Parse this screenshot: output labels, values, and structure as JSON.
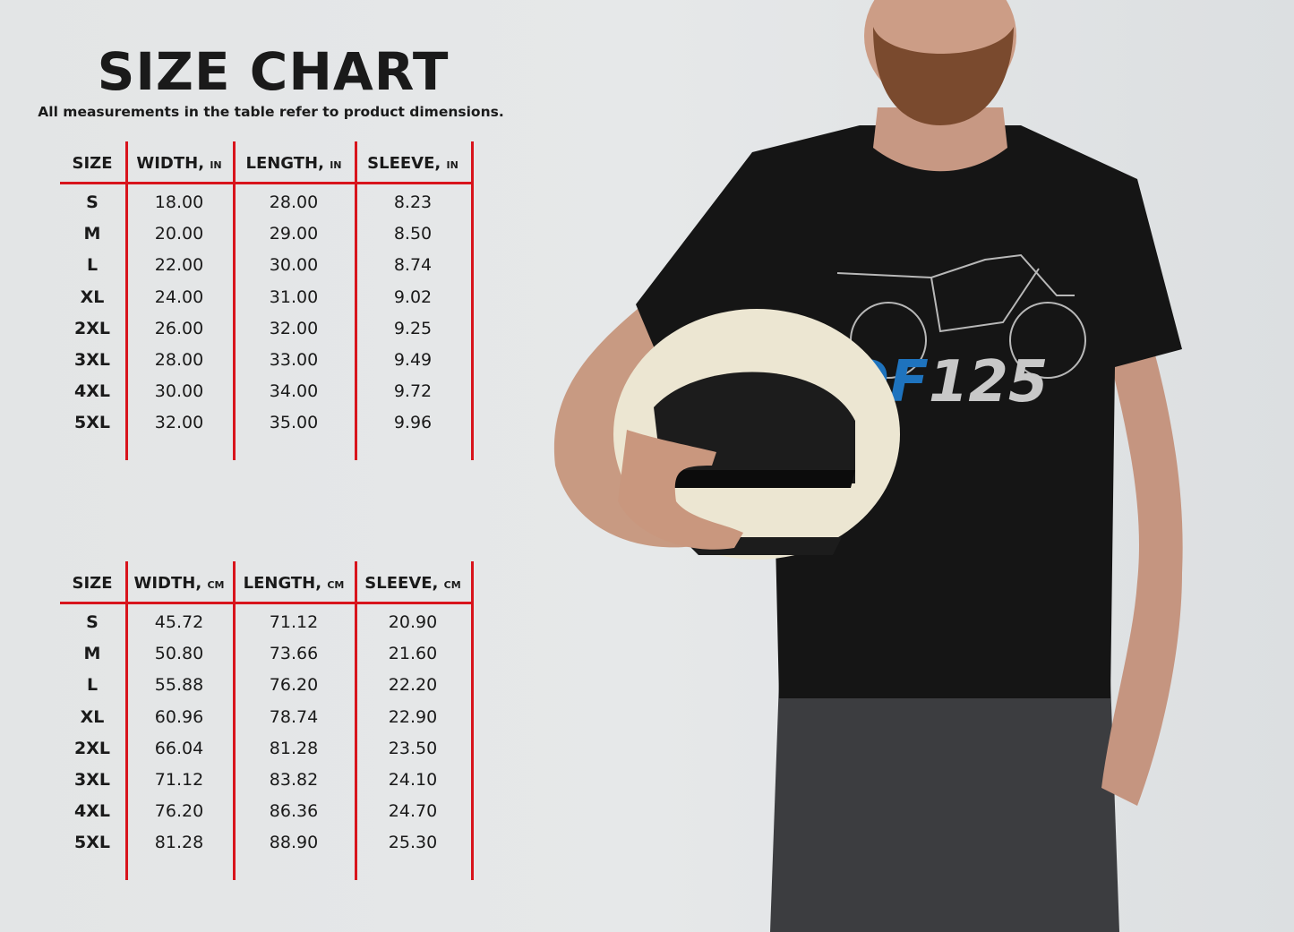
{
  "title": "SIZE CHART",
  "subtitle": "All measurements in the table refer to product dimensions.",
  "tables": [
    {
      "headers": [
        {
          "label": "SIZE",
          "unit": ""
        },
        {
          "label": "WIDTH,",
          "unit": "IN"
        },
        {
          "label": "LENGTH,",
          "unit": "IN"
        },
        {
          "label": "SLEEVE,",
          "unit": "IN"
        }
      ],
      "rows": [
        [
          "S",
          "18.00",
          "28.00",
          "8.23"
        ],
        [
          "M",
          "20.00",
          "29.00",
          "8.50"
        ],
        [
          "L",
          "22.00",
          "30.00",
          "8.74"
        ],
        [
          "XL",
          "24.00",
          "31.00",
          "9.02"
        ],
        [
          "2XL",
          "26.00",
          "32.00",
          "9.25"
        ],
        [
          "3XL",
          "28.00",
          "33.00",
          "9.49"
        ],
        [
          "4XL",
          "30.00",
          "34.00",
          "9.72"
        ],
        [
          "5XL",
          "32.00",
          "35.00",
          "9.96"
        ]
      ]
    },
    {
      "headers": [
        {
          "label": "SIZE",
          "unit": ""
        },
        {
          "label": "WIDTH,",
          "unit": "CM"
        },
        {
          "label": "LENGTH,",
          "unit": "CM"
        },
        {
          "label": "SLEEVE,",
          "unit": "CM"
        }
      ],
      "rows": [
        [
          "S",
          "45.72",
          "71.12",
          "20.90"
        ],
        [
          "M",
          "50.80",
          "73.66",
          "21.60"
        ],
        [
          "L",
          "55.88",
          "76.20",
          "22.20"
        ],
        [
          "XL",
          "60.96",
          "78.74",
          "22.90"
        ],
        [
          "2XL",
          "66.04",
          "81.28",
          "23.50"
        ],
        [
          "3XL",
          "71.12",
          "83.82",
          "24.10"
        ],
        [
          "4XL",
          "76.20",
          "86.36",
          "24.70"
        ],
        [
          "5XL",
          "81.28",
          "88.90",
          "25.30"
        ]
      ]
    }
  ],
  "shirt_logo": {
    "text_blue": "DF",
    "text_gray": "125"
  },
  "colors": {
    "grid": "#d8141c",
    "logo_blue": "#1e73be",
    "logo_gray": "#c8c8c8",
    "shirt": "#151515"
  }
}
